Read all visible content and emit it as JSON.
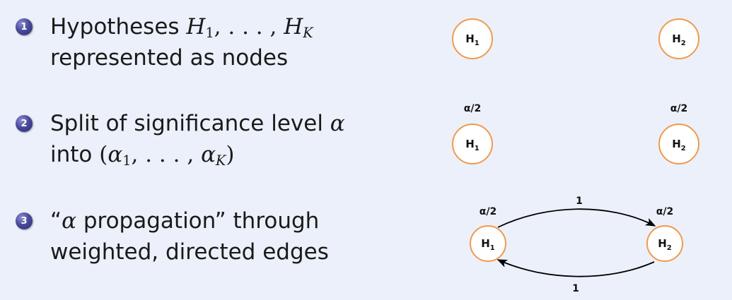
{
  "items": [
    {
      "number": "1",
      "line1_text": "Hypotheses ",
      "line1_h": "H",
      "line1_sub1": "1",
      "line1_mid": ", . . . , ",
      "line1_h2": "H",
      "line1_subK": "K",
      "line2": "represented as nodes"
    },
    {
      "number": "2",
      "line1_text": "Split of significance level ",
      "line1_alpha": "α",
      "line2_text": "into ",
      "line2_math_open": "(",
      "line2_alpha": "α",
      "line2_sub1": "1",
      "line2_mid": ", . . . , ",
      "line2_alpha2": "α",
      "line2_subK": "K",
      "line2_math_close": ")"
    },
    {
      "number": "3",
      "line1_open": "“",
      "line1_alpha": "α",
      "line1_text": " propagation” through",
      "line2": "weighted, directed edges"
    }
  ],
  "diagram": {
    "node_colors": {
      "stroke": "#f19a4b",
      "fill": "#ffffff"
    },
    "row1": {
      "nodes": [
        {
          "id": "H1",
          "letter": "H",
          "sub": "1"
        },
        {
          "id": "H2",
          "letter": "H",
          "sub": "2"
        }
      ]
    },
    "row2": {
      "alpha_labels": [
        "α/2",
        "α/2"
      ],
      "nodes": [
        {
          "id": "H1",
          "letter": "H",
          "sub": "1"
        },
        {
          "id": "H2",
          "letter": "H",
          "sub": "2"
        }
      ]
    },
    "row3": {
      "alpha_labels": [
        "α/2",
        "α/2"
      ],
      "nodes": [
        {
          "id": "H1",
          "letter": "H",
          "sub": "1"
        },
        {
          "id": "H2",
          "letter": "H",
          "sub": "2"
        }
      ],
      "edges": [
        {
          "from": "H1",
          "to": "H2",
          "weight": "1"
        },
        {
          "from": "H2",
          "to": "H1",
          "weight": "1"
        }
      ]
    }
  }
}
